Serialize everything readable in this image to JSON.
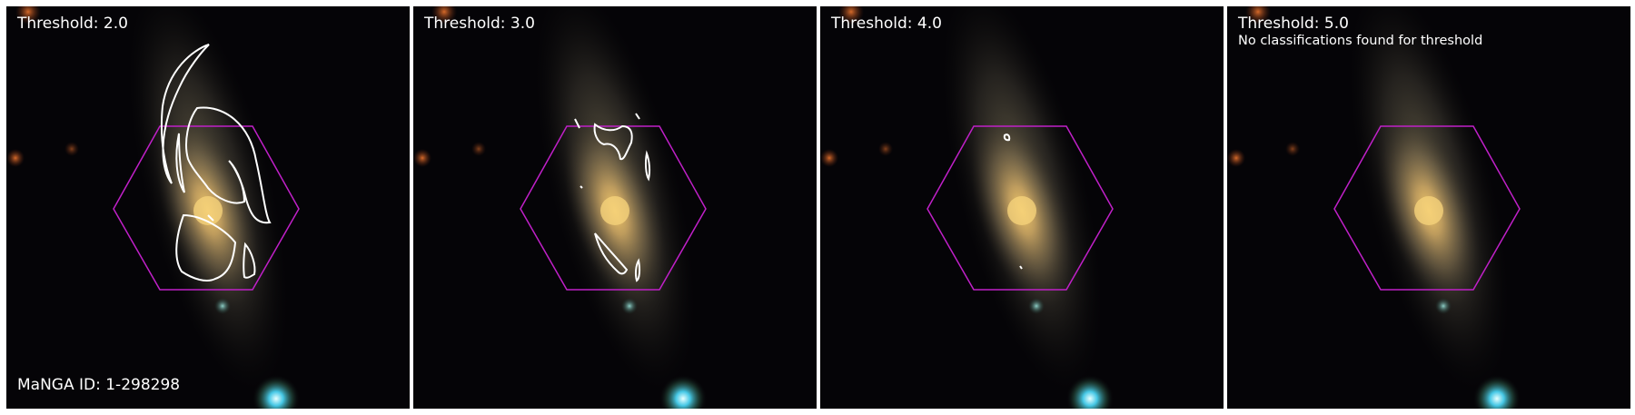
{
  "panels": [
    {
      "title": "Threshold: 2.0"
    },
    {
      "title": "Threshold: 3.0"
    },
    {
      "title": "Threshold: 4.0"
    },
    {
      "title": "Threshold: 5.0",
      "note": "No classifications found for threshold"
    }
  ],
  "manga_id": "MaNGA ID: 1-298298",
  "colors": {
    "hexagon": "#c020c8",
    "contour": "#ffffff",
    "background": "#050407",
    "divider": "#ffffff"
  }
}
